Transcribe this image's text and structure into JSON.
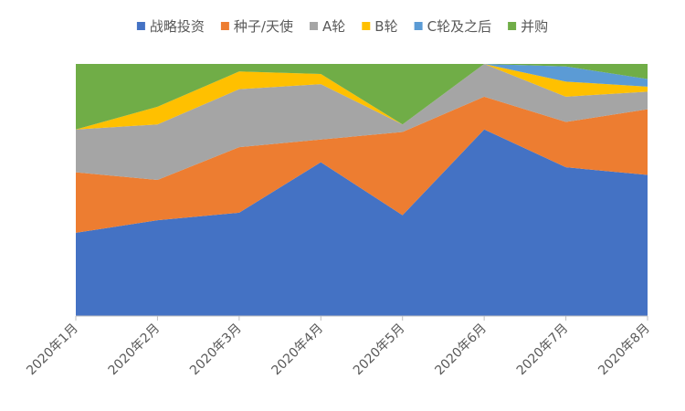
{
  "chart_data": {
    "type": "area",
    "stacked": "percent",
    "categories": [
      "2020年1月",
      "2020年2月",
      "2020年3月",
      "2020年4月",
      "2020年5月",
      "2020年6月",
      "2020年7月",
      "2020年8月"
    ],
    "ylim": [
      0,
      100
    ],
    "grid": false,
    "legend_position": "top",
    "series": [
      {
        "name": "战略投资",
        "color": "#4472C4",
        "values": [
          33,
          38,
          41,
          61,
          40,
          74,
          59,
          56
        ]
      },
      {
        "name": "种子/天使",
        "color": "#ED7D31",
        "values": [
          24,
          16,
          26,
          9,
          33,
          13,
          18,
          26
        ]
      },
      {
        "name": "A轮",
        "color": "#A5A5A5",
        "values": [
          17,
          22,
          23,
          22,
          3,
          13,
          10,
          7
        ]
      },
      {
        "name": "B轮",
        "color": "#FFC000",
        "values": [
          0,
          7,
          7,
          4,
          0,
          0,
          6,
          2
        ]
      },
      {
        "name": "C轮及之后",
        "color": "#5B9BD5",
        "values": [
          0,
          0,
          0,
          0,
          0,
          0,
          6,
          3
        ]
      },
      {
        "name": "并购",
        "color": "#70AD47",
        "values": [
          26,
          17,
          3,
          4,
          24,
          0,
          1,
          6
        ]
      }
    ]
  }
}
